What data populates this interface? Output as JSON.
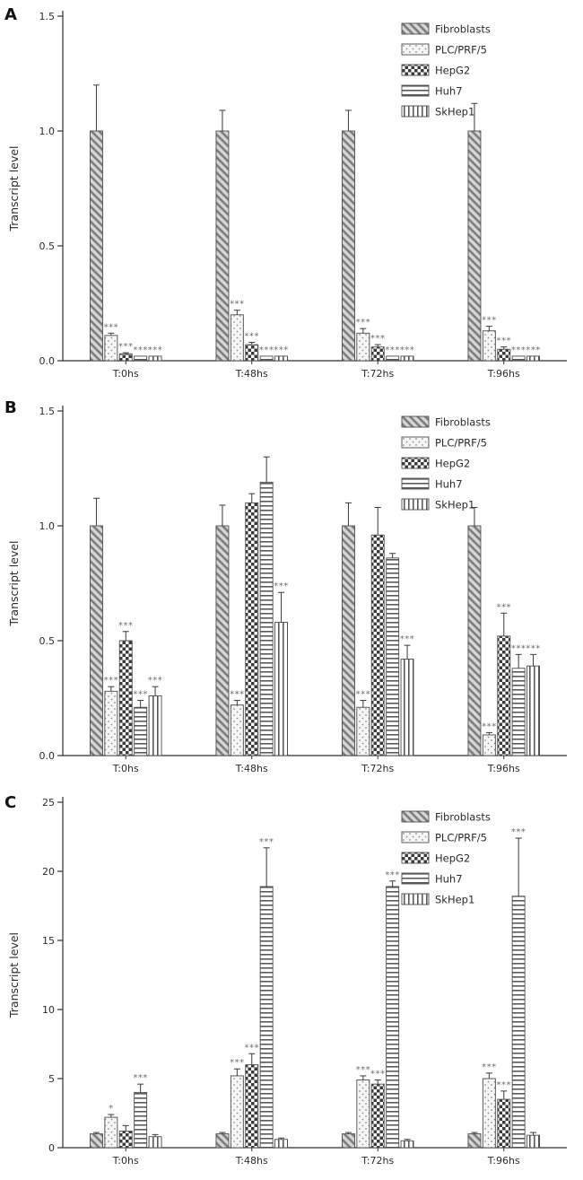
{
  "figure": {
    "panel_labels": [
      "A",
      "B",
      "C"
    ],
    "y_axis_title": "Transcript level",
    "legend_labels": [
      "Fibroblasts",
      "PLC/PRF/5",
      "HepG2",
      "Huh7",
      "SkHep1"
    ],
    "colors": {
      "axis": "#2f2f2f",
      "bar_outline": "#4d4d4d",
      "significance": "#6e6e6e"
    }
  },
  "chart_data": [
    {
      "type": "bar",
      "panel_label": "A",
      "ylabel": "Transcript level",
      "ylim": [
        0,
        1.5
      ],
      "yticks": [
        0,
        0.5,
        1.0,
        1.5
      ],
      "ytick_labels": [
        "0.0",
        "0.5",
        "1.0",
        "1.5"
      ],
      "categories": [
        "T:0hs",
        "T:48hs",
        "T:72hs",
        "T:96hs"
      ],
      "legend_position": "top-right",
      "grid": false,
      "series": [
        {
          "name": "Fibroblasts",
          "pattern": "hatch",
          "values": [
            1.0,
            1.0,
            1.0,
            1.0
          ],
          "errors": [
            0.2,
            0.09,
            0.09,
            0.12
          ],
          "sig": [
            "",
            "",
            "",
            ""
          ]
        },
        {
          "name": "PLC/PRF/5",
          "pattern": "dots",
          "values": [
            0.11,
            0.2,
            0.12,
            0.13
          ],
          "errors": [
            0.01,
            0.02,
            0.02,
            0.02
          ],
          "sig": [
            "***",
            "***",
            "***",
            "***"
          ]
        },
        {
          "name": "HepG2",
          "pattern": "checker",
          "values": [
            0.03,
            0.07,
            0.06,
            0.05
          ],
          "errors": [
            0.005,
            0.01,
            0.01,
            0.01
          ],
          "sig": [
            "***",
            "***",
            "***",
            "***"
          ]
        },
        {
          "name": "Huh7",
          "pattern": "hlines",
          "values": [
            0.02,
            0.02,
            0.02,
            0.02
          ],
          "errors": [
            0,
            0,
            0,
            0
          ],
          "sig": [
            "***",
            "***",
            "***",
            "***"
          ]
        },
        {
          "name": "SkHep1",
          "pattern": "vlines",
          "values": [
            0.02,
            0.02,
            0.02,
            0.02
          ],
          "errors": [
            0,
            0,
            0,
            0
          ],
          "sig": [
            "***",
            "***",
            "***",
            "***"
          ]
        }
      ]
    },
    {
      "type": "bar",
      "panel_label": "B",
      "ylabel": "Transcript level",
      "ylim": [
        0,
        1.5
      ],
      "yticks": [
        0,
        0.5,
        1.0,
        1.5
      ],
      "ytick_labels": [
        "0.0",
        "0.5",
        "1.0",
        "1.5"
      ],
      "categories": [
        "T:0hs",
        "T:48hs",
        "T:72hs",
        "T:96hs"
      ],
      "legend_position": "top-right",
      "grid": false,
      "series": [
        {
          "name": "Fibroblasts",
          "pattern": "hatch",
          "values": [
            1.0,
            1.0,
            1.0,
            1.0
          ],
          "errors": [
            0.12,
            0.09,
            0.1,
            0.08
          ],
          "sig": [
            "",
            "",
            "",
            ""
          ]
        },
        {
          "name": "PLC/PRF/5",
          "pattern": "dots",
          "values": [
            0.28,
            0.22,
            0.21,
            0.09
          ],
          "errors": [
            0.02,
            0.02,
            0.03,
            0.01
          ],
          "sig": [
            "***",
            "***",
            "***",
            "***"
          ]
        },
        {
          "name": "HepG2",
          "pattern": "checker",
          "values": [
            0.5,
            1.1,
            0.96,
            0.52
          ],
          "errors": [
            0.04,
            0.04,
            0.12,
            0.1
          ],
          "sig": [
            "***",
            "",
            "",
            "***"
          ]
        },
        {
          "name": "Huh7",
          "pattern": "hlines",
          "values": [
            0.21,
            1.19,
            0.86,
            0.38
          ],
          "errors": [
            0.03,
            0.11,
            0.02,
            0.06
          ],
          "sig": [
            "***",
            "",
            "",
            "***"
          ]
        },
        {
          "name": "SkHep1",
          "pattern": "vlines",
          "values": [
            0.26,
            0.58,
            0.42,
            0.39
          ],
          "errors": [
            0.04,
            0.13,
            0.06,
            0.05
          ],
          "sig": [
            "***",
            "***",
            "***",
            "***"
          ]
        }
      ]
    },
    {
      "type": "bar",
      "panel_label": "C",
      "ylabel": "Transcript level",
      "ylim": [
        0,
        25
      ],
      "yticks": [
        0,
        5,
        10,
        15,
        20,
        25
      ],
      "ytick_labels": [
        "0",
        "5",
        "10",
        "15",
        "20",
        "25"
      ],
      "categories": [
        "T:0hs",
        "T:48hs",
        "T:72hs",
        "T:96hs"
      ],
      "legend_position": "top-right",
      "grid": false,
      "series": [
        {
          "name": "Fibroblasts",
          "pattern": "hatch",
          "values": [
            1.0,
            1.0,
            1.0,
            1.0
          ],
          "errors": [
            0.1,
            0.1,
            0.1,
            0.1
          ],
          "sig": [
            "",
            "",
            "",
            ""
          ]
        },
        {
          "name": "PLC/PRF/5",
          "pattern": "dots",
          "values": [
            2.2,
            5.2,
            4.9,
            5.0
          ],
          "errors": [
            0.2,
            0.5,
            0.3,
            0.4
          ],
          "sig": [
            "*",
            "***",
            "***",
            "***"
          ]
        },
        {
          "name": "HepG2",
          "pattern": "checker",
          "values": [
            1.2,
            6.0,
            4.6,
            3.5
          ],
          "errors": [
            0.4,
            0.8,
            0.3,
            0.6
          ],
          "sig": [
            "",
            "***",
            "***",
            "***"
          ]
        },
        {
          "name": "Huh7",
          "pattern": "hlines",
          "values": [
            4.0,
            18.9,
            18.9,
            18.2
          ],
          "errors": [
            0.6,
            2.8,
            0.4,
            4.2
          ],
          "sig": [
            "***",
            "***",
            "***",
            "***"
          ]
        },
        {
          "name": "SkHep1",
          "pattern": "vlines",
          "values": [
            0.8,
            0.6,
            0.5,
            0.9
          ],
          "errors": [
            0.15,
            0.1,
            0.1,
            0.2
          ],
          "sig": [
            "",
            "",
            "",
            ""
          ]
        }
      ]
    }
  ]
}
